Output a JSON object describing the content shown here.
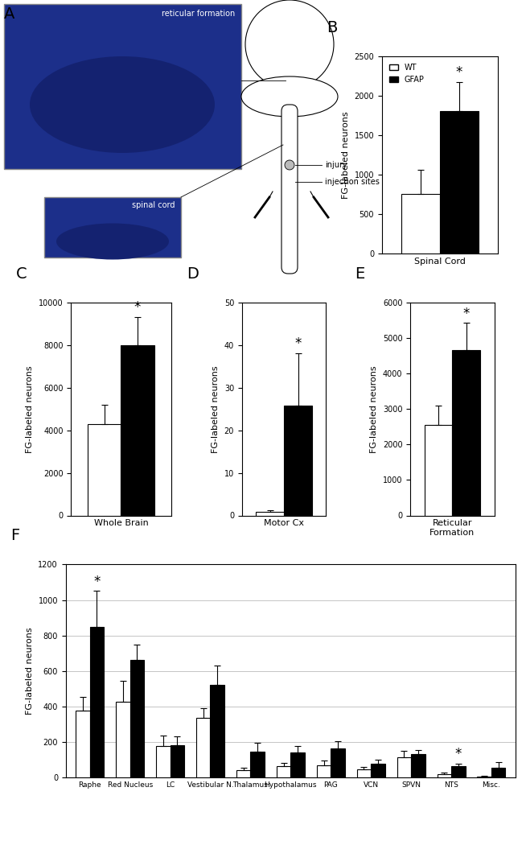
{
  "panel_a": {
    "label": "A",
    "image_labels": [
      "reticular formation",
      "spinal cord"
    ],
    "diagram_labels": [
      "injury",
      "injection sites"
    ]
  },
  "chart_data": [
    {
      "panel": "B",
      "type": "bar",
      "y_label": "FG-labeled neurons",
      "categories": [
        "Spinal Cord"
      ],
      "series": [
        {
          "name": "WT",
          "color": "#ffffff",
          "values": [
            760
          ],
          "errors": [
            300
          ]
        },
        {
          "name": "GFAP",
          "color": "#000000",
          "values": [
            1810
          ],
          "errors": [
            370
          ]
        }
      ],
      "significance": [
        "*"
      ],
      "ylim": [
        0,
        2500
      ],
      "yticks": [
        0,
        500,
        1000,
        1500,
        2000,
        2500
      ],
      "legend": "upper left",
      "grid": false
    },
    {
      "panel": "C",
      "type": "bar",
      "y_label": "FG-labeled neurons",
      "categories": [
        "Whole Brain"
      ],
      "series": [
        {
          "name": "WT",
          "color": "#ffffff",
          "values": [
            4300
          ],
          "errors": [
            900
          ]
        },
        {
          "name": "GFAP",
          "color": "#000000",
          "values": [
            7980
          ],
          "errors": [
            1350
          ]
        }
      ],
      "significance": [
        "*"
      ],
      "ylim": [
        0,
        10000
      ],
      "yticks": [
        0,
        2000,
        4000,
        6000,
        8000,
        10000
      ],
      "grid": false
    },
    {
      "panel": "D",
      "type": "bar",
      "y_label": "FG-labeled neurons",
      "categories": [
        "Motor Cx"
      ],
      "series": [
        {
          "name": "WT",
          "color": "#ffffff",
          "values": [
            0.8
          ],
          "errors": [
            0.5
          ]
        },
        {
          "name": "GFAP",
          "color": "#000000",
          "values": [
            25.7
          ],
          "errors": [
            12.4
          ]
        }
      ],
      "significance": [
        "*"
      ],
      "ylim": [
        0,
        50
      ],
      "yticks": [
        0,
        10,
        20,
        30,
        40,
        50
      ],
      "grid": false
    },
    {
      "panel": "E",
      "type": "bar",
      "y_label": "FG-labeled neurons",
      "categories": [
        "Reticular\nFormation"
      ],
      "series": [
        {
          "name": "WT",
          "color": "#ffffff",
          "values": [
            2560
          ],
          "errors": [
            530
          ]
        },
        {
          "name": "GFAP",
          "color": "#000000",
          "values": [
            4660
          ],
          "errors": [
            760
          ]
        }
      ],
      "significance": [
        "*"
      ],
      "ylim": [
        0,
        6000
      ],
      "yticks": [
        0,
        1000,
        2000,
        3000,
        4000,
        5000,
        6000
      ],
      "grid": false
    },
    {
      "panel": "F",
      "type": "bar",
      "y_label": "FG-labeled neurons",
      "categories": [
        "Raphe",
        "Red Nucleus",
        "LC",
        "Vestibular N.",
        "Thalamus",
        "Hypothalamus",
        "PAG",
        "VCN",
        "SPVN",
        "NTS",
        "Misc."
      ],
      "series": [
        {
          "name": "WT",
          "color": "#ffffff",
          "values": [
            375,
            425,
            175,
            335,
            40,
            65,
            70,
            45,
            115,
            20,
            5
          ],
          "errors": [
            80,
            120,
            60,
            55,
            15,
            15,
            25,
            12,
            35,
            8,
            3
          ]
        },
        {
          "name": "GFAP",
          "color": "#000000",
          "values": [
            850,
            660,
            180,
            520,
            145,
            140,
            165,
            75,
            130,
            65,
            55
          ],
          "errors": [
            200,
            90,
            50,
            110,
            50,
            35,
            40,
            25,
            25,
            12,
            30
          ]
        }
      ],
      "significance": [
        "*",
        null,
        null,
        null,
        null,
        null,
        null,
        null,
        null,
        "*",
        null
      ],
      "ylim": [
        0,
        1200
      ],
      "yticks": [
        0,
        200,
        400,
        600,
        800,
        1000,
        1200
      ],
      "grid": true
    }
  ]
}
